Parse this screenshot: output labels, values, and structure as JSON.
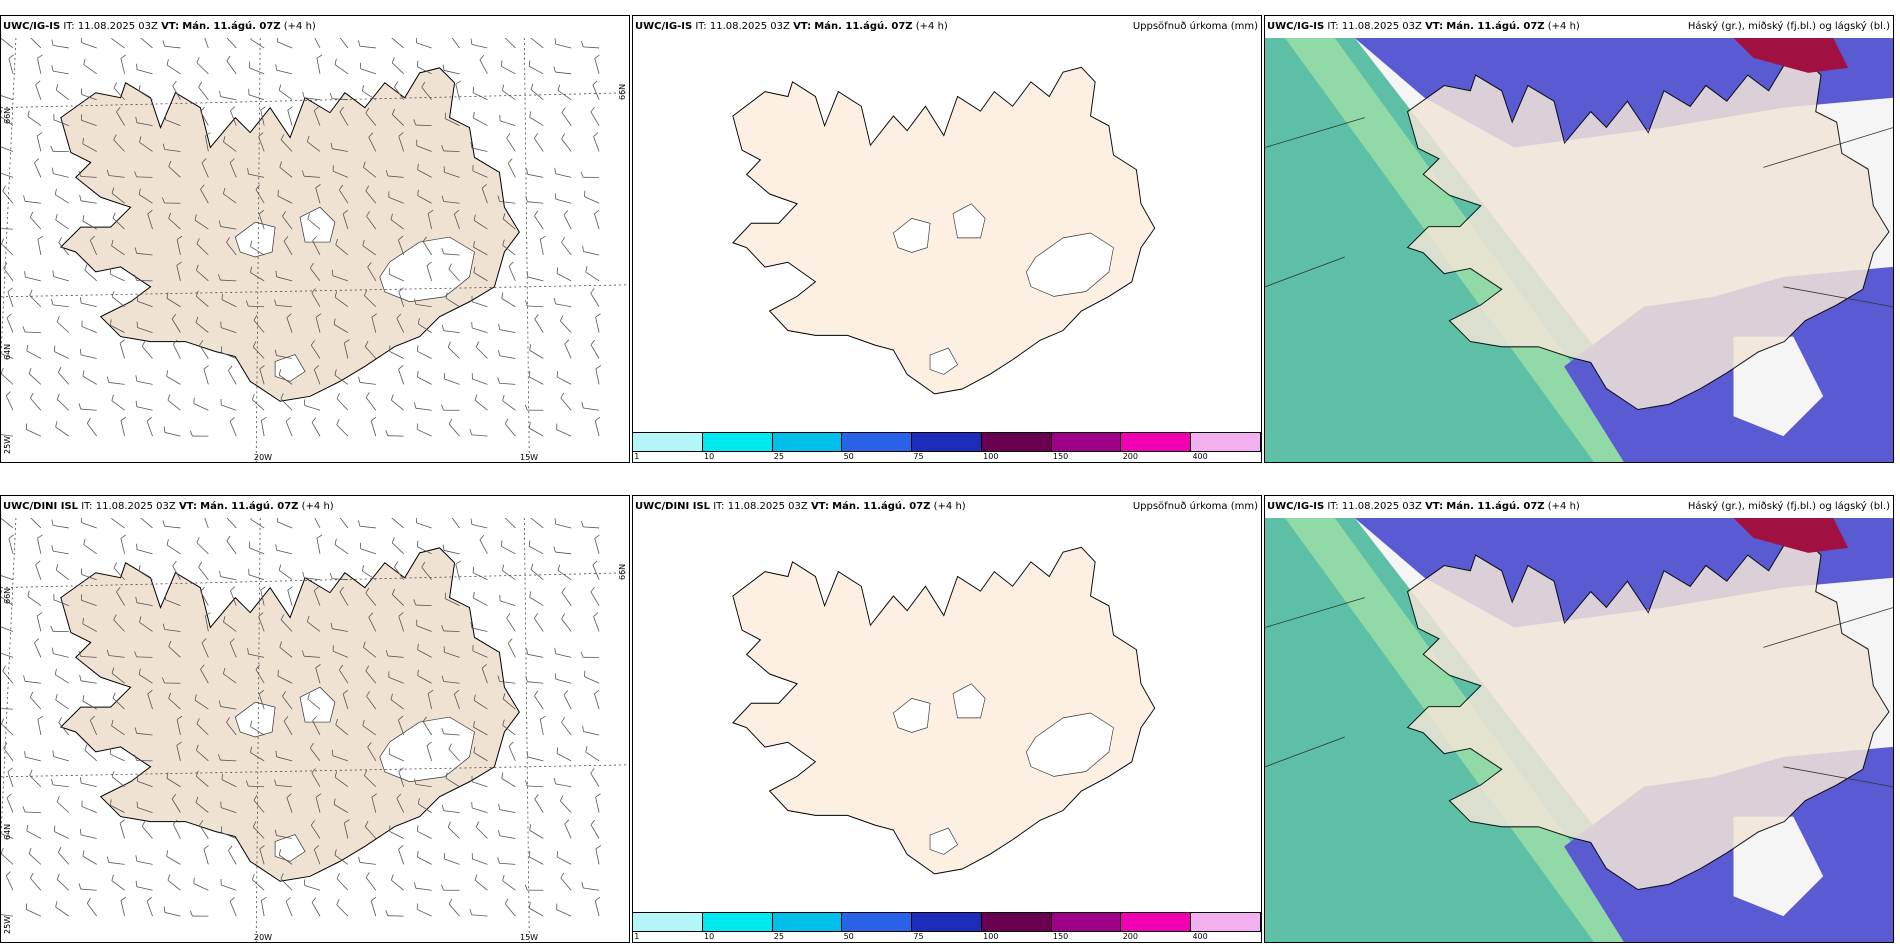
{
  "rows": [
    {
      "model": "UWC/IG-IS",
      "it_label": "IT:",
      "it_value": "11.08.2025 03Z",
      "vt_label": "VT:",
      "vt_value": "Mán. 11.ágú. 07Z",
      "lead": "(+4 h)"
    },
    {
      "model": "UWC/DINI ISL",
      "it_label": "IT:",
      "it_value": "11.08.2025 03Z",
      "vt_label": "VT:",
      "vt_value": "Mán. 11.ágú. 07Z",
      "lead": "(+4 h)"
    }
  ],
  "precip_title": "Uppsöfnuð úrkoma (mm)",
  "cloud_title": "Háský (gr.), miðský (fj.bl.) og lágský (bl.)",
  "colorbar": {
    "colors": [
      "#b4f5f8",
      "#00e8f0",
      "#00c0ea",
      "#2a62e8",
      "#1c2cb8",
      "#6a0050",
      "#a00088",
      "#f000b0",
      "#f3b0f0"
    ],
    "ticks": [
      "1",
      "10",
      "25",
      "50",
      "75",
      "100",
      "150",
      "200",
      "400"
    ]
  },
  "grid_labels": {
    "lat_66": "66N",
    "lat_64": "64N",
    "lon_25": "25W",
    "lon_20": "20W",
    "lon_15": "15W"
  },
  "colors": {
    "land_wind": "#efe2d3",
    "land_precip": "#fdf0e2",
    "high_cloud": "#5cbfa6",
    "mid_cloud": "#5a5ad2",
    "low_cloud": "#f5f5f5",
    "cloud_land": "#f2e5d8"
  }
}
